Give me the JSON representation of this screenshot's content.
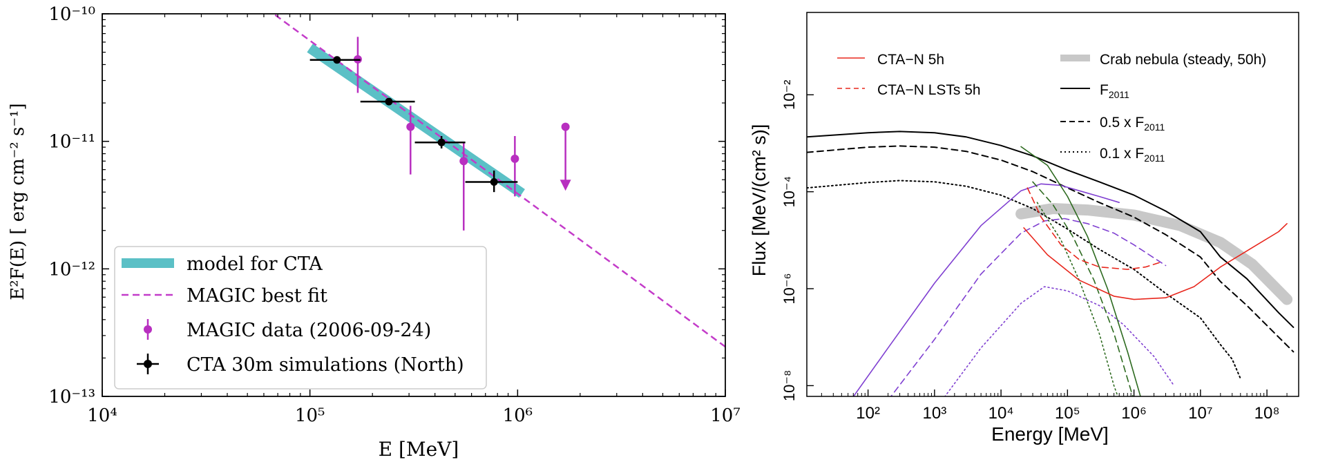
{
  "chart_data": [
    {
      "type": "scatter",
      "scale": "log-log",
      "xlabel": "E [MeV]",
      "ylabel": "E²F(E) [ erg cm⁻² s⁻¹]",
      "xlim": [
        10000,
        10000000
      ],
      "ylim": [
        1e-13,
        1e-10
      ],
      "x_ticks": [
        {
          "value": 10000,
          "label": "10⁴"
        },
        {
          "value": 100000,
          "label": "10⁵"
        },
        {
          "value": 1000000,
          "label": "10⁶"
        },
        {
          "value": 10000000,
          "label": "10⁷"
        }
      ],
      "y_ticks": [
        {
          "value": 1e-13,
          "label": "10⁻¹³"
        },
        {
          "value": 1e-12,
          "label": "10⁻¹²"
        },
        {
          "value": 1e-11,
          "label": "10⁻¹¹"
        },
        {
          "value": 1e-10,
          "label": "10⁻¹⁰"
        }
      ],
      "legend": {
        "position": "lower-left",
        "entries": [
          {
            "label": "model for CTA",
            "color": "#5bc0c6"
          },
          {
            "label": "MAGIC best fit",
            "color": "#c33bc9"
          },
          {
            "label": "MAGIC data (2006-09-24)",
            "color": "#b82fc0"
          },
          {
            "label": "CTA 30m simulations (North)",
            "color": "#000000"
          }
        ]
      },
      "series": [
        {
          "name": "model for CTA",
          "kind": "band",
          "color": "#5bc0c6",
          "points": [
            [
              100000,
              5.4e-11
            ],
            [
              1050000,
              3.9e-12
            ]
          ]
        },
        {
          "name": "MAGIC best fit",
          "kind": "dashed-line",
          "color": "#c33bc9",
          "points": [
            [
              68000,
              9.8e-11
            ],
            [
              10000000,
              2.45e-13
            ]
          ]
        },
        {
          "name": "MAGIC data (2006-09-24)",
          "kind": "errorbar",
          "color": "#b82fc0",
          "points": [
            {
              "x": 170000,
              "y": 4.4e-11,
              "ylo": 2.4e-11,
              "yhi": 6.6e-11
            },
            {
              "x": 305000,
              "y": 1.3e-11,
              "ylo": 5.5e-12,
              "yhi": 1.9e-11
            },
            {
              "x": 550000,
              "y": 7e-12,
              "ylo": 2e-12,
              "yhi": 9.8e-12
            },
            {
              "x": 970000,
              "y": 7.3e-12,
              "ylo": 3.7e-12,
              "yhi": 1.1e-11
            }
          ],
          "upper_limits": [
            {
              "x": 1700000,
              "y": 1.3e-11,
              "arrow_to": 4.2e-12
            }
          ]
        },
        {
          "name": "CTA 30m simulations (North)",
          "kind": "errorbar",
          "color": "#000000",
          "points": [
            {
              "x": 135000,
              "y": 4.35e-11,
              "xlo": 100000,
              "xhi": 175000
            },
            {
              "x": 240000,
              "y": 2.05e-11,
              "xlo": 175000,
              "xhi": 320000
            },
            {
              "x": 430000,
              "y": 9.8e-12,
              "xlo": 320000,
              "xhi": 560000,
              "ylo": 8.8e-12,
              "yhi": 1.1e-11
            },
            {
              "x": 770000,
              "y": 4.8e-12,
              "xlo": 560000,
              "xhi": 1000000,
              "ylo": 4e-12,
              "yhi": 5.9e-12
            }
          ]
        }
      ]
    },
    {
      "type": "line",
      "scale": "log-log",
      "xlabel": "Energy [MeV]",
      "ylabel": "Flux [MeV/(cm² s)]",
      "xlim": [
        12,
        300000000
      ],
      "ylim": [
        6e-09,
        0.5
      ],
      "x_ticks": [
        {
          "value": 100,
          "label": "10²"
        },
        {
          "value": 1000,
          "label": "10³"
        },
        {
          "value": 10000,
          "label": "10⁴"
        },
        {
          "value": 100000,
          "label": "10⁵"
        },
        {
          "value": 1000000,
          "label": "10⁶"
        },
        {
          "value": 10000000,
          "label": "10⁷"
        },
        {
          "value": 100000000,
          "label": "10⁸"
        }
      ],
      "y_ticks": [
        {
          "value": 1e-08,
          "label": "10⁻⁸"
        },
        {
          "value": 1e-06,
          "label": "10⁻⁶"
        },
        {
          "value": 0.0001,
          "label": "10⁻⁴"
        },
        {
          "value": 0.01,
          "label": "10⁻²"
        }
      ],
      "legend": {
        "position": "top",
        "entries": [
          {
            "label": "CTA−N 5h",
            "color": "#e8261c",
            "style": "solid"
          },
          {
            "label": "CTA−N LSTs 5h",
            "color": "#e8261c",
            "style": "dashed"
          },
          {
            "label": "Crab nebula (steady, 50h)",
            "color": "#c8c8c8",
            "style": "thick"
          },
          {
            "label": "F",
            "sub": "2011",
            "color": "#000000",
            "style": "solid"
          },
          {
            "label": "0.5 x F",
            "sub": "2011",
            "color": "#000000",
            "style": "dashed"
          },
          {
            "label": "0.1 x F",
            "sub": "2011",
            "color": "#000000",
            "style": "dotted"
          }
        ]
      },
      "series": [
        {
          "name": "Crab nebula (steady, 50h)",
          "color": "#c8c8c8",
          "style": "thick",
          "points": [
            [
              20000,
              3.5e-05
            ],
            [
              60000,
              4.5e-05
            ],
            [
              200000,
              4.2e-05
            ],
            [
              1000000,
              3.3e-05
            ],
            [
              5000000,
              2e-05
            ],
            [
              20000000,
              9e-06
            ],
            [
              60000000,
              3.2e-06
            ],
            [
              200000000,
              6e-07
            ]
          ]
        },
        {
          "name": "F2011",
          "color": "#000000",
          "style": "solid",
          "points": [
            [
              12,
              0.00135
            ],
            [
              100,
              0.00165
            ],
            [
              300,
              0.00175
            ],
            [
              1000,
              0.00165
            ],
            [
              3000,
              0.00135
            ],
            [
              10000,
              0.0009
            ],
            [
              30000,
              0.00055
            ],
            [
              100000,
              0.00028
            ],
            [
              300000,
              0.00016
            ],
            [
              1000000,
              8.5e-05
            ],
            [
              3000000,
              4e-05
            ],
            [
              10000000,
              1.5e-05
            ],
            [
              20000000,
              4.5e-06
            ],
            [
              50000000,
              1.6e-06
            ],
            [
              150000000,
              3.2e-07
            ],
            [
              250000000,
              1.6e-07
            ]
          ]
        },
        {
          "name": "0.5 x F2011",
          "color": "#000000",
          "style": "dashed",
          "points": [
            [
              12,
              0.00065
            ],
            [
              100,
              0.00083
            ],
            [
              300,
              0.00088
            ],
            [
              1000,
              0.00083
            ],
            [
              3000,
              0.00068
            ],
            [
              10000,
              0.00045
            ],
            [
              30000,
              0.00026
            ],
            [
              100000,
              0.00012
            ],
            [
              300000,
              6e-05
            ],
            [
              1000000,
              3e-05
            ],
            [
              3000000,
              1.3e-05
            ],
            [
              10000000,
              4.5e-06
            ],
            [
              20000000,
              1.4e-06
            ],
            [
              50000000,
              4.5e-07
            ],
            [
              150000000,
              1e-07
            ],
            [
              250000000,
              5e-08
            ]
          ]
        },
        {
          "name": "0.1 x F2011",
          "color": "#000000",
          "style": "dotted",
          "points": [
            [
              12,
              0.00012
            ],
            [
              100,
              0.000155
            ],
            [
              300,
              0.00017
            ],
            [
              1000,
              0.00016
            ],
            [
              3000,
              0.00013
            ],
            [
              10000,
              8.5e-05
            ],
            [
              30000,
              4.5e-05
            ],
            [
              100000,
              1.7e-05
            ],
            [
              300000,
              6.5e-06
            ],
            [
              1000000,
              2.5e-06
            ],
            [
              3000000,
              8e-07
            ],
            [
              10000000,
              2.5e-07
            ],
            [
              20000000,
              7e-08
            ],
            [
              30000000,
              3.5e-08
            ],
            [
              40000000,
              1.4e-08
            ]
          ]
        },
        {
          "name": "purple solid",
          "color": "#7f3fd1",
          "style": "solid",
          "points": [
            [
              55,
              5e-09
            ],
            [
              200,
              6e-08
            ],
            [
              1000,
              1.3e-06
            ],
            [
              5000,
              2e-05
            ],
            [
              20000,
              0.000105
            ],
            [
              40000,
              0.000145
            ],
            [
              80000,
              0.000135
            ],
            [
              150000,
              0.000105
            ],
            [
              300000,
              8e-05
            ],
            [
              600000,
              6e-05
            ]
          ]
        },
        {
          "name": "purple dashed",
          "color": "#7f3fd1",
          "style": "dashed",
          "points": [
            [
              200,
              5e-09
            ],
            [
              1000,
              9e-08
            ],
            [
              5000,
              2e-06
            ],
            [
              20000,
              1.4e-05
            ],
            [
              45000,
              2.5e-05
            ],
            [
              90000,
              2.8e-05
            ],
            [
              200000,
              2.2e-05
            ],
            [
              500000,
              1.4e-05
            ],
            [
              1000000,
              8e-06
            ],
            [
              3000000,
              3e-06
            ]
          ]
        },
        {
          "name": "purple dotted",
          "color": "#7f3fd1",
          "style": "dotted",
          "points": [
            [
              1300,
              5e-09
            ],
            [
              5000,
              6e-08
            ],
            [
              20000,
              5e-07
            ],
            [
              45000,
              1.1e-06
            ],
            [
              100000,
              9e-07
            ],
            [
              300000,
              4.5e-07
            ],
            [
              700000,
              1.8e-07
            ],
            [
              2000000,
              4e-08
            ],
            [
              4000000,
              1e-08
            ]
          ]
        },
        {
          "name": "green solid",
          "color": "#2d6a1f",
          "style": "solid",
          "points": [
            [
              20000,
              0.00085
            ],
            [
              50000,
              0.00035
            ],
            [
              100000,
              8e-05
            ],
            [
              200000,
              1.2e-05
            ],
            [
              400000,
              1e-06
            ],
            [
              800000,
              5e-08
            ],
            [
              1300000,
              5e-09
            ]
          ]
        },
        {
          "name": "green dashed",
          "color": "#2d6a1f",
          "style": "dashed",
          "points": [
            [
              30000,
              0.00016
            ],
            [
              60000,
              5.5e-05
            ],
            [
              120000,
              1.2e-05
            ],
            [
              250000,
              1.5e-06
            ],
            [
              500000,
              1.2e-07
            ],
            [
              900000,
              8e-09
            ],
            [
              1000000,
              5e-09
            ]
          ]
        },
        {
          "name": "green dotted",
          "color": "#2d6a1f",
          "style": "dotted",
          "points": [
            [
              35000,
              6e-05
            ],
            [
              80000,
              1e-05
            ],
            [
              150000,
              1.5e-06
            ],
            [
              300000,
              1.2e-07
            ],
            [
              500000,
              1e-08
            ],
            [
              600000,
              5e-09
            ]
          ]
        },
        {
          "name": "CTA−N 5h",
          "color": "#e8261c",
          "style": "solid",
          "points": [
            [
              22000,
              1.8e-05
            ],
            [
              50000,
              5e-06
            ],
            [
              150000,
              1.5e-06
            ],
            [
              500000,
              7e-07
            ],
            [
              1000000,
              6e-07
            ],
            [
              3000000,
              6.5e-07
            ],
            [
              8000000,
              1.1e-06
            ],
            [
              20000000,
              2.8e-06
            ],
            [
              60000000,
              7e-06
            ],
            [
              150000000,
              1.5e-05
            ],
            [
              200000000,
              2.2e-05
            ]
          ]
        },
        {
          "name": "CTA−N LSTs 5h",
          "color": "#e8261c",
          "style": "dashed",
          "points": [
            [
              25000,
              0.00012
            ],
            [
              40000,
              3e-05
            ],
            [
              80000,
              8e-06
            ],
            [
              150000,
              4e-06
            ],
            [
              300000,
              2.8e-06
            ],
            [
              800000,
              2.5e-06
            ],
            [
              1500000,
              2.8e-06
            ],
            [
              2500000,
              3.5e-06
            ]
          ]
        }
      ]
    }
  ]
}
